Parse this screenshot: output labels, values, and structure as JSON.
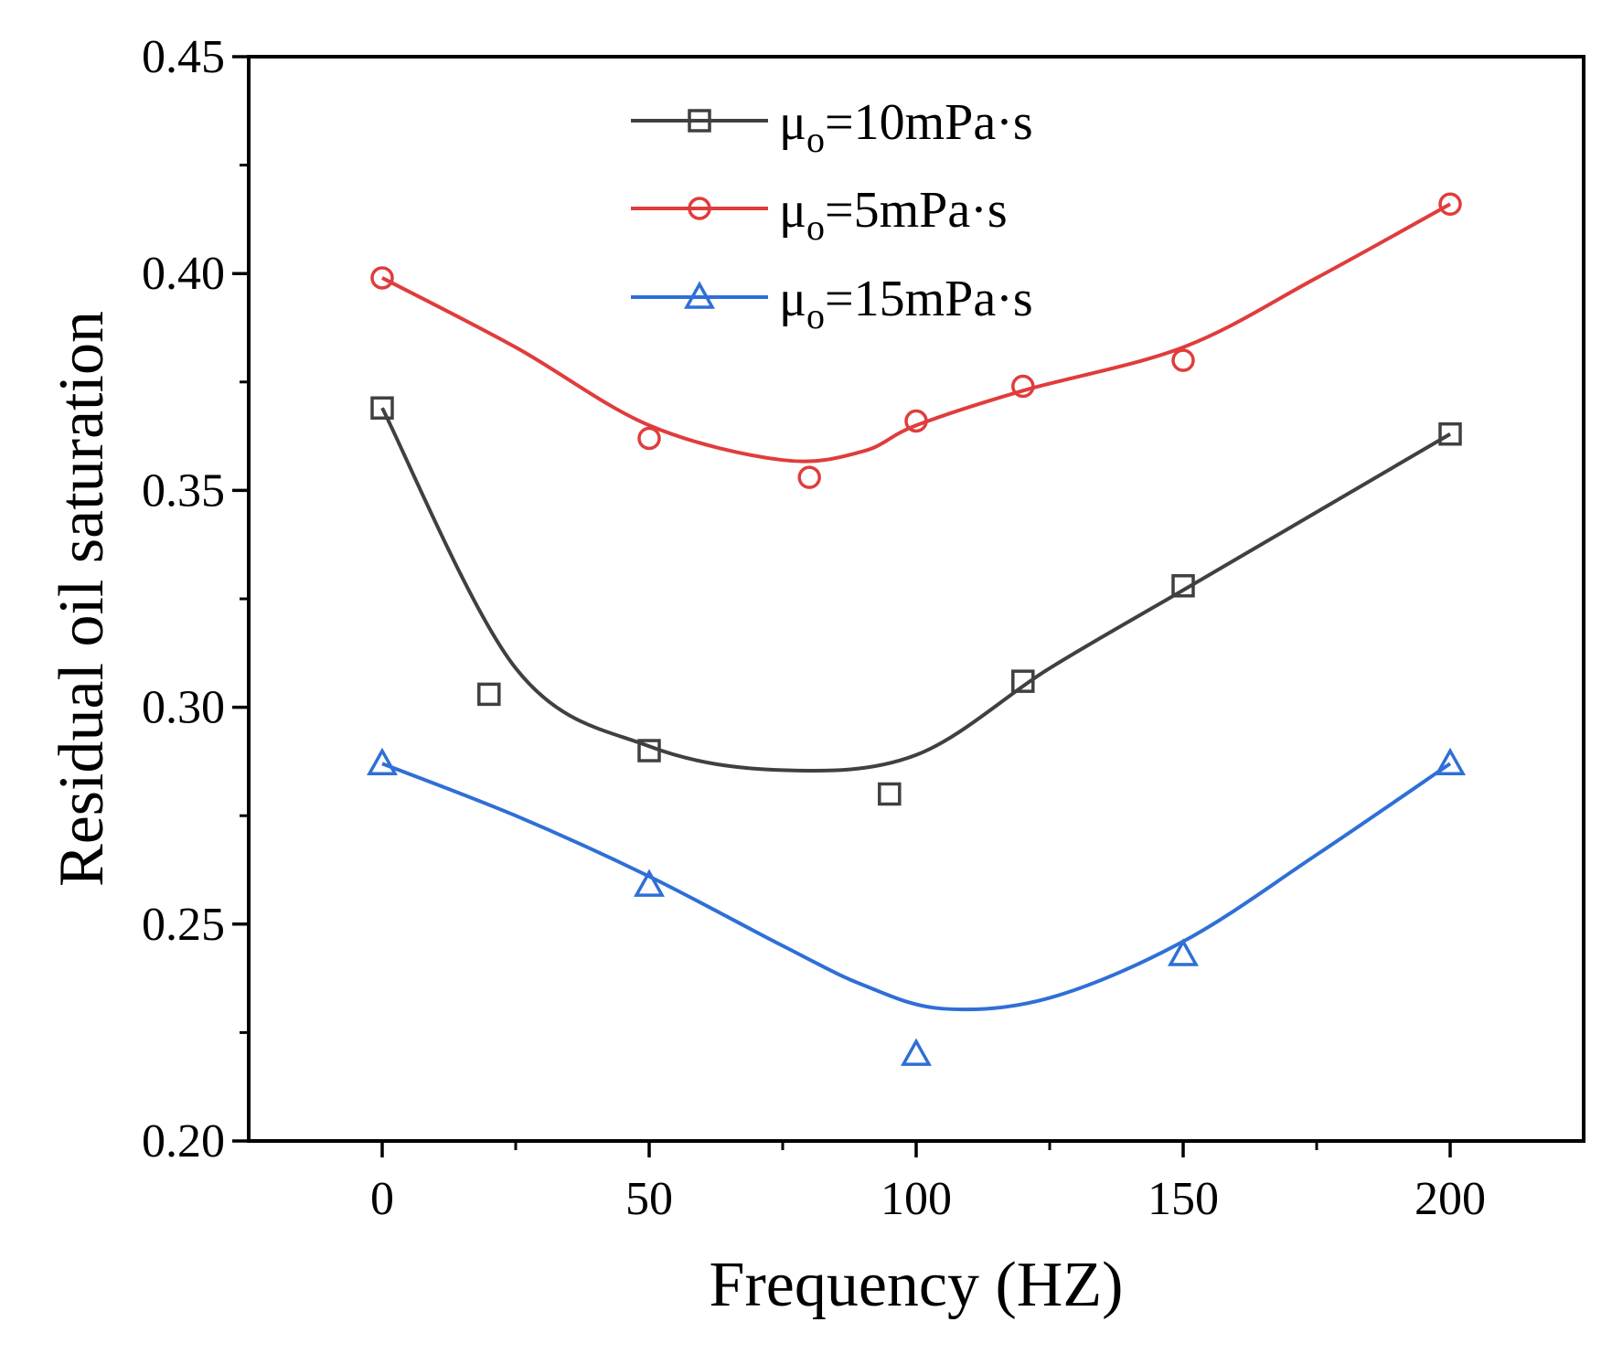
{
  "chart_data": {
    "type": "scatter",
    "title": "",
    "xlabel": "Frequency (HZ)",
    "ylabel": "Residual oil saturation",
    "xlim": [
      -25,
      225
    ],
    "ylim": [
      0.2,
      0.45
    ],
    "xticks": [
      0,
      50,
      100,
      150,
      200
    ],
    "xtick_labels": [
      "0",
      "50",
      "100",
      "150",
      "200"
    ],
    "yticks": [
      0.2,
      0.25,
      0.3,
      0.35,
      0.4,
      0.45
    ],
    "ytick_labels": [
      "0.20",
      "0.25",
      "0.30",
      "0.35",
      "0.40",
      "0.45"
    ],
    "legend_position": "top-center",
    "series": [
      {
        "name": "μo=10mPa·s",
        "legend_main": "μ",
        "legend_sub": "o",
        "legend_rest": "=10mPa·s",
        "marker": "square",
        "color": "#404040",
        "x": [
          0,
          20,
          50,
          95,
          120,
          150,
          200
        ],
        "values": [
          0.369,
          0.303,
          0.29,
          0.28,
          0.306,
          0.328,
          0.363
        ],
        "fit_x": [
          0,
          25,
          50,
          75,
          100,
          125,
          150,
          175,
          200
        ],
        "fit_y": [
          0.369,
          0.309,
          0.291,
          0.2855,
          0.289,
          0.309,
          0.327,
          0.345,
          0.363
        ]
      },
      {
        "name": "μo=5mPa·s",
        "legend_main": "μ",
        "legend_sub": "o",
        "legend_rest": "=5mPa·s",
        "marker": "circle",
        "color": "#e03c3c",
        "x": [
          0,
          50,
          80,
          100,
          120,
          150,
          200
        ],
        "values": [
          0.399,
          0.362,
          0.353,
          0.366,
          0.374,
          0.38,
          0.416
        ],
        "fit_x": [
          0,
          25,
          50,
          75,
          90,
          100,
          120,
          150,
          175,
          200
        ],
        "fit_y": [
          0.399,
          0.383,
          0.365,
          0.357,
          0.359,
          0.365,
          0.373,
          0.383,
          0.399,
          0.416
        ]
      },
      {
        "name": "μo=15mPa·s",
        "legend_main": "μ",
        "legend_sub": "o",
        "legend_rest": "=15mPa·s",
        "marker": "triangle",
        "color": "#2f6fd6",
        "x": [
          0,
          50,
          100,
          150,
          200
        ],
        "values": [
          0.287,
          0.259,
          0.22,
          0.243,
          0.287
        ],
        "fit_x": [
          0,
          25,
          50,
          75,
          90,
          105,
          125,
          150,
          175,
          200
        ],
        "fit_y": [
          0.287,
          0.275,
          0.261,
          0.245,
          0.236,
          0.2305,
          0.233,
          0.246,
          0.266,
          0.287
        ]
      }
    ]
  }
}
